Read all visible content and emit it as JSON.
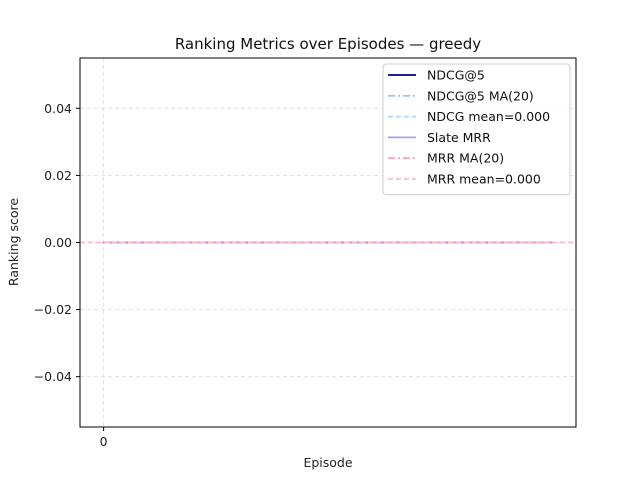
{
  "chart_data": {
    "type": "line",
    "title": "Ranking Metrics over Episodes — greedy",
    "xlabel": "Episode",
    "ylabel": "Ranking score",
    "x": [
      0
    ],
    "xticks": [
      0
    ],
    "xlim": [
      -1,
      20
    ],
    "ylim": [
      -0.055,
      0.055
    ],
    "yticks": [
      -0.04,
      -0.02,
      0.0,
      0.02,
      0.04
    ],
    "ytick_labels": [
      "−0.04",
      "−0.02",
      "0.00",
      "0.02",
      "0.04"
    ],
    "grid": true,
    "legend_position": "top-right",
    "series": [
      {
        "name": "NDCG@5",
        "values": [
          0.0
        ],
        "color": "#00008b",
        "style": "solid",
        "kind": "series"
      },
      {
        "name": "NDCG@5 MA(20)",
        "values": [
          0.0
        ],
        "color": "#9ecae1",
        "style": "dashdot",
        "kind": "series"
      },
      {
        "name": "NDCG mean=0.000",
        "value": 0.0,
        "color": "#aed6f1",
        "style": "dashed",
        "kind": "hline"
      },
      {
        "name": "Slate MRR",
        "values": [
          0.0
        ],
        "color": "#a99cf0",
        "style": "solid",
        "kind": "series"
      },
      {
        "name": "MRR MA(20)",
        "values": [
          0.0
        ],
        "color": "#f4a6c0",
        "style": "dashdot",
        "kind": "series"
      },
      {
        "name": "MRR mean=0.000",
        "value": 0.0,
        "color": "#f8bbd9",
        "style": "dashed",
        "kind": "hline"
      }
    ]
  }
}
